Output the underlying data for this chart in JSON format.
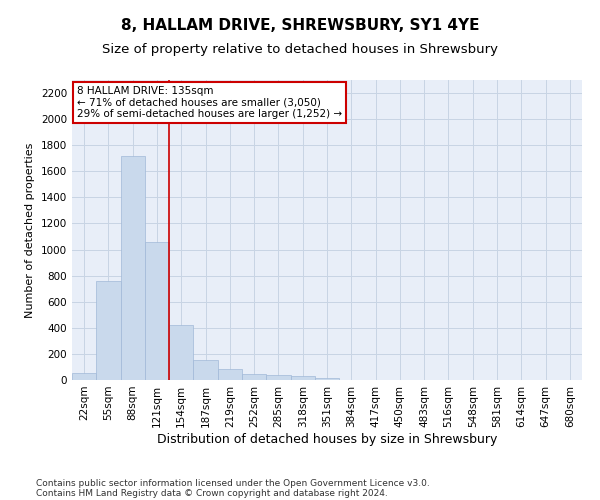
{
  "title": "8, HALLAM DRIVE, SHREWSBURY, SY1 4YE",
  "subtitle": "Size of property relative to detached houses in Shrewsbury",
  "xlabel": "Distribution of detached houses by size in Shrewsbury",
  "ylabel": "Number of detached properties",
  "bar_labels": [
    "22sqm",
    "55sqm",
    "88sqm",
    "121sqm",
    "154sqm",
    "187sqm",
    "219sqm",
    "252sqm",
    "285sqm",
    "318sqm",
    "351sqm",
    "384sqm",
    "417sqm",
    "450sqm",
    "483sqm",
    "516sqm",
    "548sqm",
    "581sqm",
    "614sqm",
    "647sqm",
    "680sqm"
  ],
  "bar_values": [
    55,
    760,
    1720,
    1060,
    420,
    150,
    85,
    48,
    38,
    28,
    18,
    0,
    0,
    0,
    0,
    0,
    0,
    0,
    0,
    0,
    0
  ],
  "bar_color": "#c9d9ec",
  "bar_edgecolor": "#a0b8d8",
  "vline_x": 3.5,
  "vline_color": "#cc0000",
  "annotation_line1": "8 HALLAM DRIVE: 135sqm",
  "annotation_line2": "← 71% of detached houses are smaller (3,050)",
  "annotation_line3": "29% of semi-detached houses are larger (1,252) →",
  "annotation_box_color": "#ffffff",
  "annotation_box_edgecolor": "#cc0000",
  "ylim": [
    0,
    2300
  ],
  "yticks": [
    0,
    200,
    400,
    600,
    800,
    1000,
    1200,
    1400,
    1600,
    1800,
    2000,
    2200
  ],
  "grid_color": "#c8d4e4",
  "bg_color": "#e8eef8",
  "footer_line1": "Contains HM Land Registry data © Crown copyright and database right 2024.",
  "footer_line2": "Contains public sector information licensed under the Open Government Licence v3.0.",
  "title_fontsize": 11,
  "subtitle_fontsize": 9.5,
  "xlabel_fontsize": 9,
  "ylabel_fontsize": 8,
  "tick_fontsize": 7.5,
  "footer_fontsize": 6.5,
  "annotation_fontsize": 7.5
}
